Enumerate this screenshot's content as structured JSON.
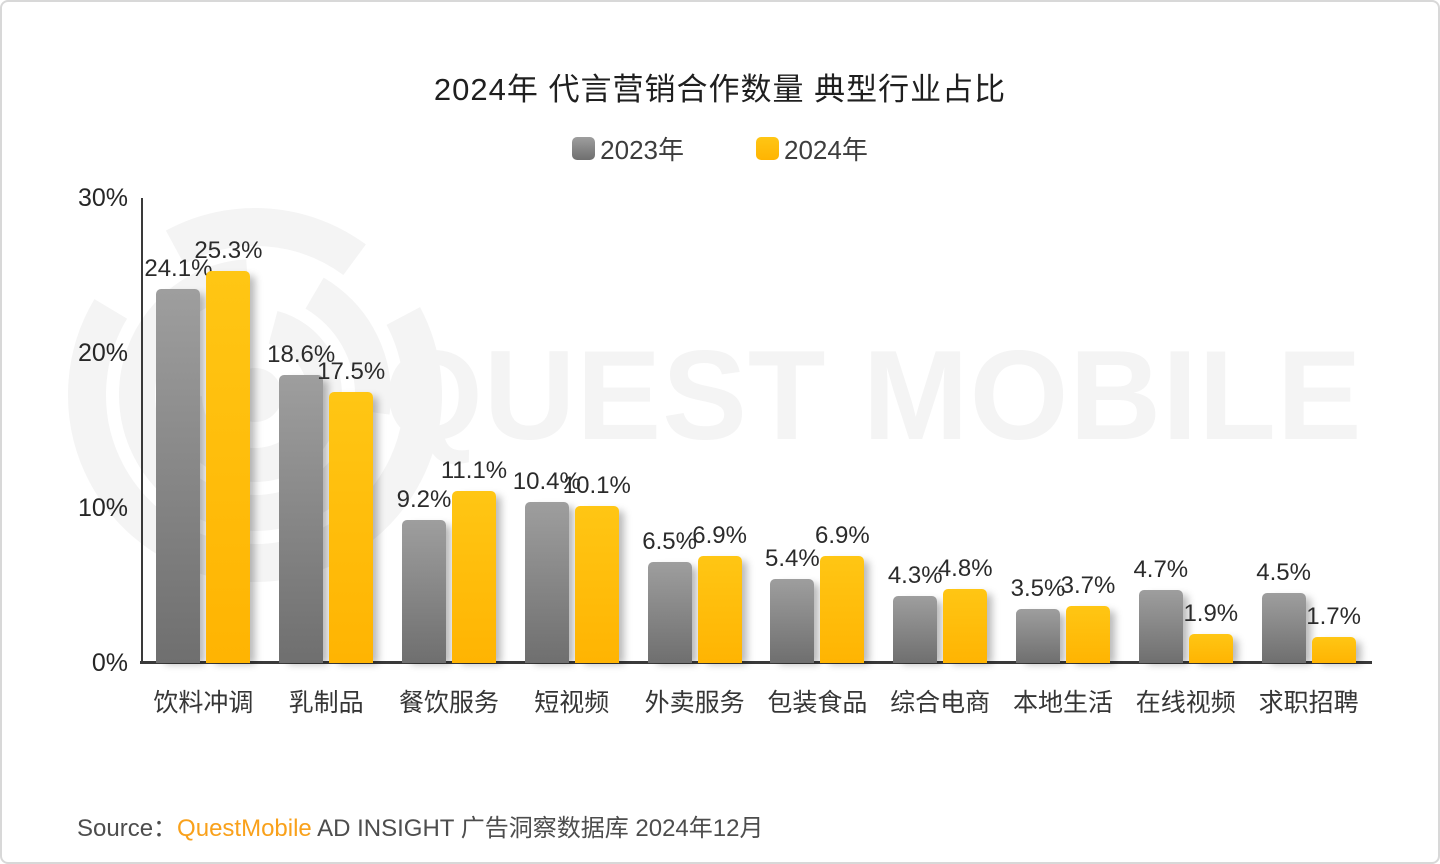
{
  "title": "2024年 代言营销合作数量 典型行业占比",
  "watermark": {
    "text": "QUEST MOBILE"
  },
  "source": {
    "label": "Source：",
    "brand": "QuestMobile",
    "rest": " AD INSIGHT 广告洞察数据库 2024年12月"
  },
  "colors": {
    "bar_2023_top": "#9E9E9E",
    "bar_2023_bottom": "#6F6F6F",
    "bar_2024_top": "#FFC614",
    "bar_2024_bottom": "#FFB402",
    "legend_2023": "#8C8C8C",
    "legend_2024": "#FFC10D",
    "brand_orange": "#F9A11B",
    "watermark_gray": "#F4F4F4",
    "axis": "#3A3A3A",
    "text_dark": "#262626"
  },
  "chart_data": {
    "type": "bar",
    "title": "2024年 代言营销合作数量 典型行业占比",
    "categories": [
      "饮料冲调",
      "乳制品",
      "餐饮服务",
      "短视频",
      "外卖服务",
      "包装食品",
      "综合电商",
      "本地生活",
      "在线视频",
      "求职招聘"
    ],
    "series": [
      {
        "name": "2023年",
        "values": [
          24.1,
          18.6,
          9.2,
          10.4,
          6.5,
          5.4,
          4.3,
          3.5,
          4.7,
          4.5
        ]
      },
      {
        "name": "2024年",
        "values": [
          25.3,
          17.5,
          11.1,
          10.1,
          6.9,
          6.9,
          4.8,
          3.7,
          1.9,
          1.7
        ]
      }
    ],
    "unit": "%",
    "xlabel": "",
    "ylabel": "",
    "ylim": [
      0,
      30
    ],
    "yticks": [
      "0%",
      "10%",
      "20%",
      "30%"
    ],
    "grid": false,
    "legend_position": "top-center",
    "value_labels": true
  }
}
